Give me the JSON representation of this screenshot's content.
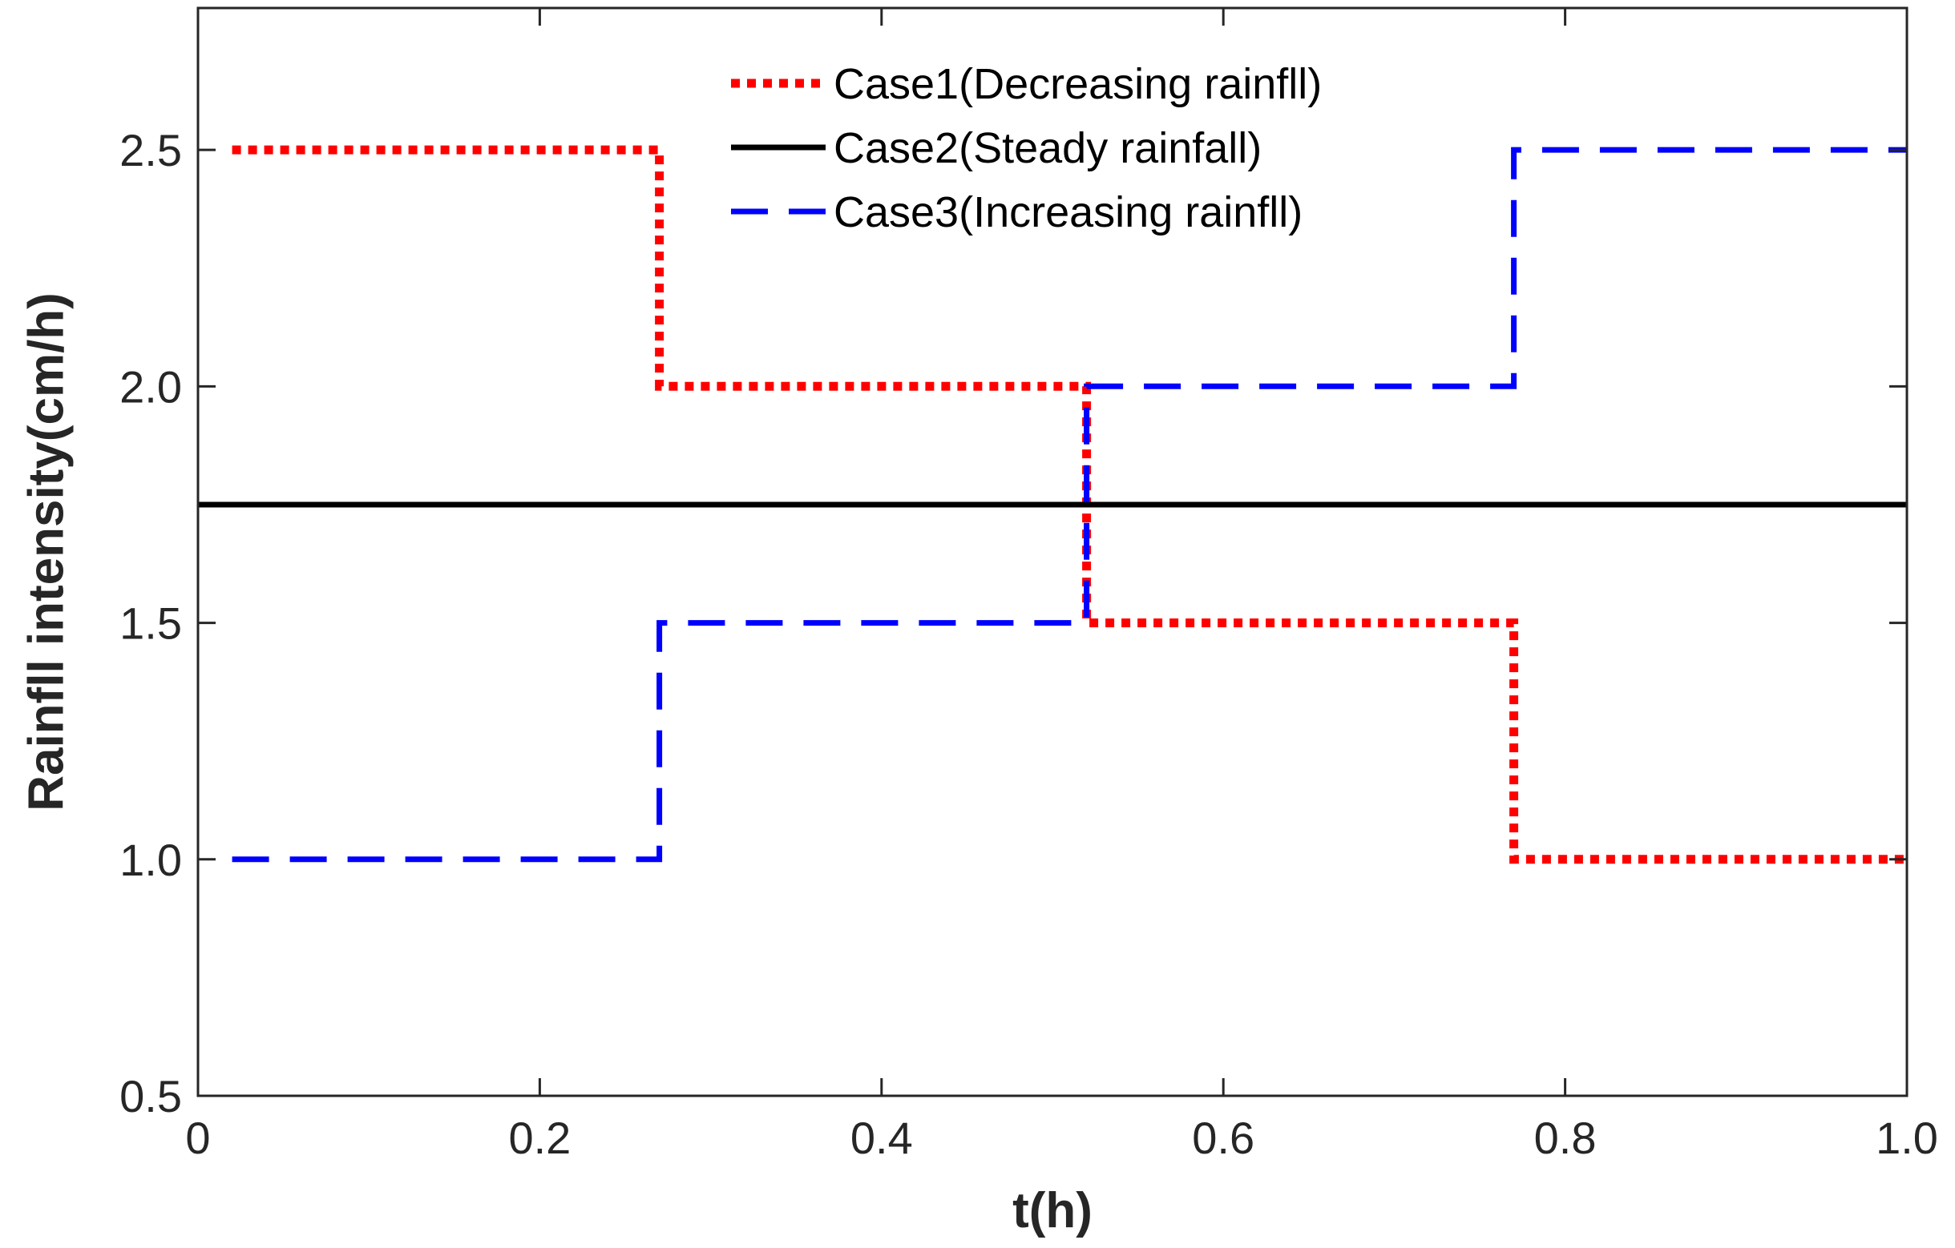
{
  "chart_data": {
    "type": "line",
    "title": "",
    "xlabel": "t(h)",
    "ylabel": "Rainfll intensity(cm/h)",
    "xlim": [
      0,
      1.0
    ],
    "ylim": [
      0.5,
      2.8
    ],
    "x_ticks": [
      0,
      0.2,
      0.4,
      0.6,
      0.8,
      1.0
    ],
    "x_tick_labels": [
      "0",
      "0.2",
      "0.4",
      "0.6",
      "0.8",
      "1.0"
    ],
    "y_ticks": [
      0.5,
      1.0,
      1.5,
      2.0,
      2.5
    ],
    "y_tick_labels": [
      "0.5",
      "1.0",
      "1.5",
      "2.0",
      "2.5"
    ],
    "grid": false,
    "legend_position": "top-center",
    "series": [
      {
        "name": "Case1(Decreasing rainfll)",
        "color": "#ff0000",
        "style": "dotted",
        "x": [
          0.02,
          0.27,
          0.27,
          0.52,
          0.52,
          0.77,
          0.77,
          1.0
        ],
        "y": [
          2.5,
          2.5,
          2.0,
          2.0,
          1.5,
          1.5,
          1.0,
          1.0
        ]
      },
      {
        "name": "Case2(Steady rainfall)",
        "color": "#000000",
        "style": "solid",
        "x": [
          0,
          1.0
        ],
        "y": [
          1.75,
          1.75
        ]
      },
      {
        "name": "Case3(Increasing rainfll)",
        "color": "#0000ff",
        "style": "dashed",
        "x": [
          0.02,
          0.27,
          0.27,
          0.52,
          0.52,
          0.77,
          0.77,
          1.0
        ],
        "y": [
          1.0,
          1.0,
          1.5,
          1.5,
          2.0,
          2.0,
          2.5,
          2.5
        ]
      }
    ]
  }
}
